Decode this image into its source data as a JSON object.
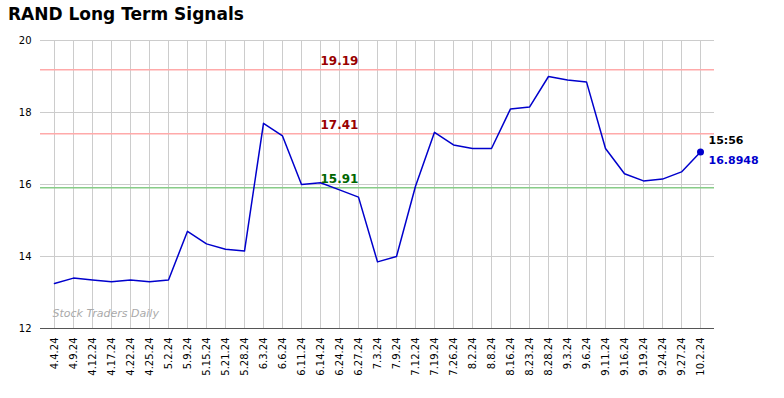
{
  "chart_data": {
    "type": "line",
    "title": "RAND Long Term Signals",
    "categories": [
      "4.4.24",
      "4.9.24",
      "4.12.24",
      "4.17.24",
      "4.22.24",
      "4.25.24",
      "5.2.24",
      "5.9.24",
      "5.15.24",
      "5.21.24",
      "5.28.24",
      "6.3.24",
      "6.6.24",
      "6.11.24",
      "6.14.24",
      "6.24.24",
      "6.27.24",
      "7.3.24",
      "7.9.24",
      "7.12.24",
      "7.19.24",
      "7.26.24",
      "8.2.24",
      "8.8.24",
      "8.16.24",
      "8.23.24",
      "8.28.24",
      "9.3.24",
      "9.6.24",
      "9.11.24",
      "9.16.24",
      "9.19.24",
      "9.24.24",
      "9.27.24",
      "10.2.24"
    ],
    "values": [
      13.25,
      13.4,
      13.35,
      13.3,
      13.35,
      13.3,
      13.35,
      14.7,
      14.35,
      14.2,
      14.15,
      17.7,
      17.35,
      16.0,
      16.05,
      15.85,
      15.65,
      13.85,
      14.0,
      15.95,
      17.45,
      17.1,
      17.0,
      17.0,
      18.1,
      18.15,
      19.0,
      18.9,
      18.85,
      17.0,
      16.3,
      16.1,
      16.15,
      16.35,
      16.9
    ],
    "color": "#0000cc",
    "ylim": [
      12,
      20
    ],
    "yticks": [
      12,
      14,
      16,
      18,
      20
    ],
    "grid": true,
    "hlines": [
      {
        "value": 19.19,
        "color": "#ffaaaa",
        "label": "19.19",
        "label_color": "#990000"
      },
      {
        "value": 17.41,
        "color": "#ffaaaa",
        "label": "17.41",
        "label_color": "#990000"
      },
      {
        "value": 15.91,
        "color": "#88cc88",
        "label": "15.91",
        "label_color": "#006600"
      }
    ],
    "annotations": [
      {
        "text": "15:56",
        "color": "#000000"
      },
      {
        "text": "16.8948",
        "color": "#0000cc"
      }
    ],
    "watermark": {
      "text": "Stock Traders Daily",
      "color": "#aaaaaa"
    }
  }
}
